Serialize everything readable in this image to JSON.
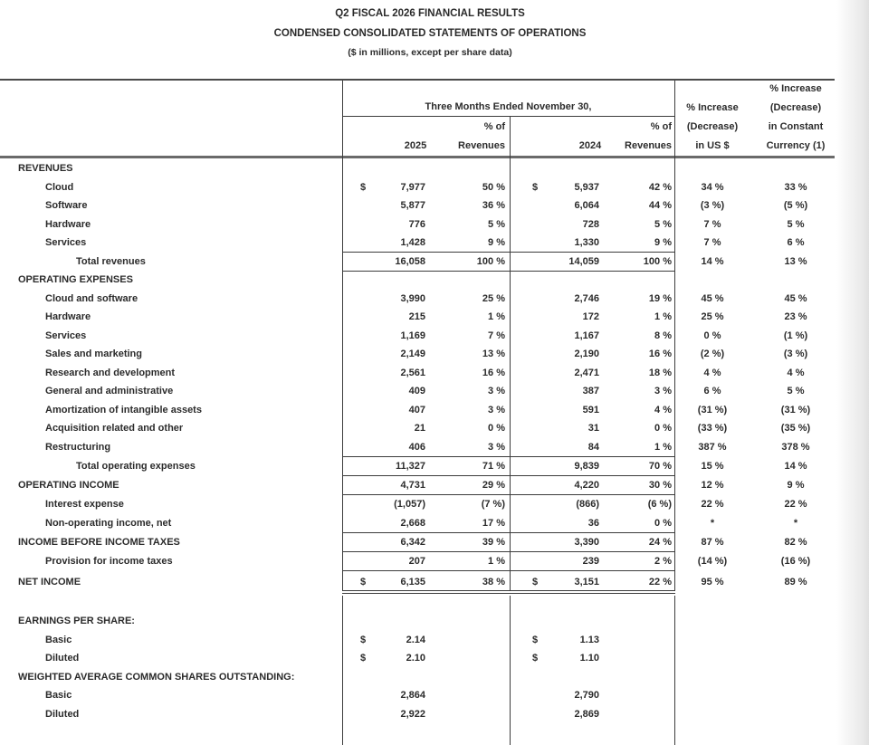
{
  "document": {
    "title_line1": "Q2 FISCAL 2026 FINANCIAL RESULTS",
    "title_line2": "CONDENSED CONSOLIDATED STATEMENTS OF OPERATIONS",
    "title_line3": "($ in millions, except per share data)"
  },
  "table": {
    "header": {
      "period_span": "Three Months Ended November 30,",
      "year_current": "2025",
      "year_prior": "2024",
      "pct_of_line1": "% of",
      "pct_of_line2": "Revenues",
      "usd_change_line1": "% Increase",
      "usd_change_line2": "(Decrease)",
      "usd_change_line3": "in US $",
      "cc_change_line1": "% Increase",
      "cc_change_line2": "(Decrease)",
      "cc_change_line3": "in Constant",
      "cc_change_line4": "Currency (1)"
    },
    "rows": [
      {
        "label": "REVENUES",
        "indent": 0,
        "section": true,
        "d1": "",
        "v1": "",
        "p1": "",
        "d2": "",
        "v2": "",
        "p2": "",
        "us": "",
        "cc": ""
      },
      {
        "label": "Cloud",
        "indent": 1,
        "d1": "$",
        "v1": "7,977",
        "p1": "50 %",
        "d2": "$",
        "v2": "5,937",
        "p2": "42 %",
        "us": "34 %",
        "cc": "33 %"
      },
      {
        "label": "Software",
        "indent": 1,
        "d1": "",
        "v1": "5,877",
        "p1": "36 %",
        "d2": "",
        "v2": "6,064",
        "p2": "44 %",
        "us": "(3 %)",
        "cc": "(5 %)"
      },
      {
        "label": "Hardware",
        "indent": 1,
        "d1": "",
        "v1": "776",
        "p1": "5 %",
        "d2": "",
        "v2": "728",
        "p2": "5 %",
        "us": "7 %",
        "cc": "5 %"
      },
      {
        "label": "Services",
        "indent": 1,
        "d1": "",
        "v1": "1,428",
        "p1": "9 %",
        "d2": "",
        "v2": "1,330",
        "p2": "9 %",
        "us": "7 %",
        "cc": "6 %"
      },
      {
        "label": "Total revenues",
        "indent": 2,
        "d1": "",
        "v1": "16,058",
        "p1": "100 %",
        "d2": "",
        "v2": "14,059",
        "p2": "100 %",
        "us": "14 %",
        "cc": "13 %"
      },
      {
        "label": "OPERATING EXPENSES",
        "indent": 0,
        "section": true,
        "d1": "",
        "v1": "",
        "p1": "",
        "d2": "",
        "v2": "",
        "p2": "",
        "us": "",
        "cc": ""
      },
      {
        "label": "Cloud and software",
        "indent": 1,
        "d1": "",
        "v1": "3,990",
        "p1": "25 %",
        "d2": "",
        "v2": "2,746",
        "p2": "19 %",
        "us": "45 %",
        "cc": "45 %"
      },
      {
        "label": "Hardware",
        "indent": 1,
        "d1": "",
        "v1": "215",
        "p1": "1 %",
        "d2": "",
        "v2": "172",
        "p2": "1 %",
        "us": "25 %",
        "cc": "23 %"
      },
      {
        "label": "Services",
        "indent": 1,
        "d1": "",
        "v1": "1,169",
        "p1": "7 %",
        "d2": "",
        "v2": "1,167",
        "p2": "8 %",
        "us": "0 %",
        "cc": "(1 %)"
      },
      {
        "label": "Sales and marketing",
        "indent": 1,
        "d1": "",
        "v1": "2,149",
        "p1": "13 %",
        "d2": "",
        "v2": "2,190",
        "p2": "16 %",
        "us": "(2 %)",
        "cc": "(3 %)"
      },
      {
        "label": "Research and development",
        "indent": 1,
        "d1": "",
        "v1": "2,561",
        "p1": "16 %",
        "d2": "",
        "v2": "2,471",
        "p2": "18 %",
        "us": "4 %",
        "cc": "4 %"
      },
      {
        "label": "General and administrative",
        "indent": 1,
        "d1": "",
        "v1": "409",
        "p1": "3 %",
        "d2": "",
        "v2": "387",
        "p2": "3 %",
        "us": "6 %",
        "cc": "5 %"
      },
      {
        "label": "Amortization of intangible assets",
        "indent": 1,
        "d1": "",
        "v1": "407",
        "p1": "3 %",
        "d2": "",
        "v2": "591",
        "p2": "4 %",
        "us": "(31 %)",
        "cc": "(31 %)"
      },
      {
        "label": "Acquisition related and other",
        "indent": 1,
        "d1": "",
        "v1": "21",
        "p1": "0 %",
        "d2": "",
        "v2": "31",
        "p2": "0 %",
        "us": "(33 %)",
        "cc": "(35 %)"
      },
      {
        "label": "Restructuring",
        "indent": 1,
        "d1": "",
        "v1": "406",
        "p1": "3 %",
        "d2": "",
        "v2": "84",
        "p2": "1 %",
        "us": "387 %",
        "cc": "378 %"
      },
      {
        "label": "Total operating expenses",
        "indent": 2,
        "d1": "",
        "v1": "11,327",
        "p1": "71 %",
        "d2": "",
        "v2": "9,839",
        "p2": "70 %",
        "us": "15 %",
        "cc": "14 %"
      },
      {
        "label": "OPERATING INCOME",
        "indent": 0,
        "section": true,
        "d1": "",
        "v1": "4,731",
        "p1": "29 %",
        "d2": "",
        "v2": "4,220",
        "p2": "30 %",
        "us": "12 %",
        "cc": "9 %"
      },
      {
        "label": "Interest expense",
        "indent": 1,
        "d1": "",
        "v1": "(1,057)",
        "p1": "(7 %)",
        "d2": "",
        "v2": "(866)",
        "p2": "(6 %)",
        "us": "22 %",
        "cc": "22 %"
      },
      {
        "label": "Non-operating income, net",
        "indent": 1,
        "d1": "",
        "v1": "2,668",
        "p1": "17 %",
        "d2": "",
        "v2": "36",
        "p2": "0 %",
        "us": "*",
        "cc": "*"
      },
      {
        "label": "INCOME BEFORE INCOME TAXES",
        "indent": 0,
        "section": true,
        "d1": "",
        "v1": "6,342",
        "p1": "39 %",
        "d2": "",
        "v2": "3,390",
        "p2": "24 %",
        "us": "87 %",
        "cc": "82 %"
      },
      {
        "label": "Provision for income taxes",
        "indent": 1,
        "d1": "",
        "v1": "207",
        "p1": "1 %",
        "d2": "",
        "v2": "239",
        "p2": "2 %",
        "us": "(14 %)",
        "cc": "(16 %)"
      },
      {
        "label": "NET INCOME",
        "indent": 0,
        "section": true,
        "d1": "$",
        "v1": "6,135",
        "p1": "38 %",
        "d2": "$",
        "v2": "3,151",
        "p2": "22 %",
        "us": "95 %",
        "cc": "89 %"
      },
      {
        "label": "EARNINGS PER SHARE:",
        "indent": 0,
        "section": true,
        "d1": "",
        "v1": "",
        "p1": "",
        "d2": "",
        "v2": "",
        "p2": "",
        "us": "",
        "cc": ""
      },
      {
        "label": "Basic",
        "indent": 1,
        "d1": "$",
        "v1": "2.14",
        "p1": "",
        "d2": "$",
        "v2": "1.13",
        "p2": "",
        "us": "",
        "cc": ""
      },
      {
        "label": "Diluted",
        "indent": 1,
        "d1": "$",
        "v1": "2.10",
        "p1": "",
        "d2": "$",
        "v2": "1.10",
        "p2": "",
        "us": "",
        "cc": ""
      },
      {
        "label": "WEIGHTED AVERAGE COMMON SHARES OUTSTANDING:",
        "indent": 0,
        "section": true,
        "d1": "",
        "v1": "",
        "p1": "",
        "d2": "",
        "v2": "",
        "p2": "",
        "us": "",
        "cc": ""
      },
      {
        "label": "Basic",
        "indent": 1,
        "d1": "",
        "v1": "2,864",
        "p1": "",
        "d2": "",
        "v2": "2,790",
        "p2": "",
        "us": "",
        "cc": ""
      },
      {
        "label": "Diluted",
        "indent": 1,
        "d1": "",
        "v1": "2,922",
        "p1": "",
        "d2": "",
        "v2": "2,869",
        "p2": "",
        "us": "",
        "cc": ""
      }
    ]
  }
}
